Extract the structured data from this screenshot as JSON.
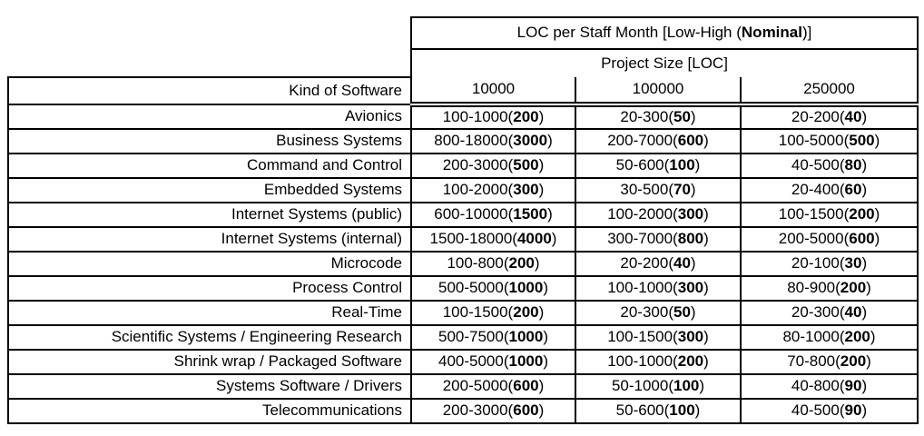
{
  "figure": {
    "background": "#ffffff",
    "border_color": "#000000",
    "text_color": "#000000"
  },
  "table": {
    "title_prefix": "LOC per Staff Month [Low-High (",
    "title_bold": "Nominal",
    "title_suffix": ")]",
    "subtitle": "Project Size [LOC]",
    "row_header": "Kind of Software",
    "columns": [
      "10000",
      "100000",
      "250000"
    ],
    "paren_open": "(",
    "paren_close": ")"
  },
  "chart_data": {
    "type": "table",
    "title": "LOC per Staff Month [Low-High (Nominal)]",
    "subtitle": "Project Size [LOC]",
    "row_header": "Kind of Software",
    "columns": [
      "10000",
      "100000",
      "250000"
    ],
    "rows": [
      {
        "kind": "Avionics",
        "cells": [
          {
            "range": "100-1000",
            "nominal": "200"
          },
          {
            "range": "20-300",
            "nominal": "50"
          },
          {
            "range": "20-200",
            "nominal": "40"
          }
        ]
      },
      {
        "kind": "Business Systems",
        "cells": [
          {
            "range": "800-18000",
            "nominal": "3000"
          },
          {
            "range": "200-7000",
            "nominal": "600"
          },
          {
            "range": "100-5000",
            "nominal": "500"
          }
        ]
      },
      {
        "kind": "Command and Control",
        "cells": [
          {
            "range": "200-3000",
            "nominal": "500"
          },
          {
            "range": "50-600",
            "nominal": "100"
          },
          {
            "range": "40-500",
            "nominal": "80"
          }
        ]
      },
      {
        "kind": "Embedded Systems",
        "cells": [
          {
            "range": "100-2000",
            "nominal": "300"
          },
          {
            "range": "30-500",
            "nominal": "70"
          },
          {
            "range": "20-400",
            "nominal": "60"
          }
        ]
      },
      {
        "kind": "Internet Systems (public)",
        "cells": [
          {
            "range": "600-10000",
            "nominal": "1500"
          },
          {
            "range": "100-2000",
            "nominal": "300"
          },
          {
            "range": "100-1500",
            "nominal": "200"
          }
        ]
      },
      {
        "kind": "Internet Systems (internal)",
        "cells": [
          {
            "range": "1500-18000",
            "nominal": "4000"
          },
          {
            "range": "300-7000",
            "nominal": "800"
          },
          {
            "range": "200-5000",
            "nominal": "600"
          }
        ]
      },
      {
        "kind": "Microcode",
        "cells": [
          {
            "range": "100-800",
            "nominal": "200"
          },
          {
            "range": "20-200",
            "nominal": "40"
          },
          {
            "range": "20-100",
            "nominal": "30"
          }
        ]
      },
      {
        "kind": "Process Control",
        "cells": [
          {
            "range": "500-5000",
            "nominal": "1000"
          },
          {
            "range": "100-1000",
            "nominal": "300"
          },
          {
            "range": "80-900",
            "nominal": "200"
          }
        ]
      },
      {
        "kind": "Real-Time",
        "cells": [
          {
            "range": "100-1500",
            "nominal": "200"
          },
          {
            "range": "20-300",
            "nominal": "50"
          },
          {
            "range": "20-300",
            "nominal": "40"
          }
        ]
      },
      {
        "kind": "Scientific Systems / Engineering Research",
        "cells": [
          {
            "range": "500-7500",
            "nominal": "1000"
          },
          {
            "range": "100-1500",
            "nominal": "300"
          },
          {
            "range": "80-1000",
            "nominal": "200"
          }
        ]
      },
      {
        "kind": "Shrink wrap / Packaged Software",
        "cells": [
          {
            "range": "400-5000",
            "nominal": "1000"
          },
          {
            "range": "100-1000",
            "nominal": "200"
          },
          {
            "range": "70-800",
            "nominal": "200"
          }
        ]
      },
      {
        "kind": "Systems Software / Drivers",
        "cells": [
          {
            "range": "200-5000",
            "nominal": "600"
          },
          {
            "range": "50-1000",
            "nominal": "100"
          },
          {
            "range": "40-800",
            "nominal": "90"
          }
        ]
      },
      {
        "kind": "Telecommunications",
        "cells": [
          {
            "range": "200-3000",
            "nominal": "600"
          },
          {
            "range": "50-600",
            "nominal": "100"
          },
          {
            "range": "40-500",
            "nominal": "90"
          }
        ]
      }
    ]
  }
}
